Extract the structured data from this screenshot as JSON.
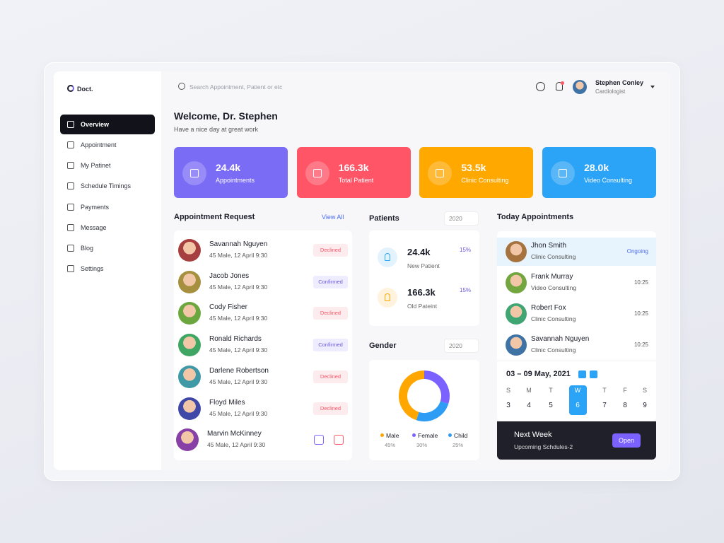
{
  "brand": "Doct.",
  "nav": [
    "Overview",
    "Appointment",
    "My Patinet",
    "Schedule Timings",
    "Payments",
    "Message",
    "Blog",
    "Settings"
  ],
  "search_placeholder": "Search Appointment, Patient or etc",
  "user": {
    "name": "Stephen Conley",
    "role": "Cardiologist"
  },
  "welcome": {
    "title": "Welcome, Dr. Stephen",
    "subtitle": "Have a nice day at great work"
  },
  "stats": [
    {
      "value": "24.4k",
      "label": "Appointments",
      "color": "#7b6cf6"
    },
    {
      "value": "166.3k",
      "label": "Total Patient",
      "color": "#ff5567"
    },
    {
      "value": "53.5k",
      "label": "Clinic Consulting",
      "color": "#ffa800"
    },
    {
      "value": "28.0k",
      "label": "Video Consulting",
      "color": "#2ba3f6"
    }
  ],
  "appointment_request": {
    "title": "Appointment Request",
    "link": "View All",
    "rows": [
      {
        "name": "Savannah Nguyen",
        "info": "45 Male, 12 April 9:30",
        "status": "Declined"
      },
      {
        "name": "Jacob Jones",
        "info": "45 Male, 12 April 9:30",
        "status": "Confirmed"
      },
      {
        "name": "Cody Fisher",
        "info": "45 Male, 12 April 9:30",
        "status": "Declined"
      },
      {
        "name": "Ronald Richards",
        "info": "45 Male, 12 April 9:30",
        "status": "Confirmed"
      },
      {
        "name": "Darlene Robertson",
        "info": "45 Male, 12 April 9:30",
        "status": "Declined"
      },
      {
        "name": "Floyd Miles",
        "info": "45 Male, 12 April 9:30",
        "status": "Declined"
      },
      {
        "name": "Marvin McKinney",
        "info": "45 Male, 12 April 9:30"
      }
    ]
  },
  "patients": {
    "title": "Patients",
    "year": "2020",
    "items": [
      {
        "value": "24.4k",
        "change": "15%",
        "label": "New Patient",
        "color": "#2ba3f6"
      },
      {
        "value": "166.3k",
        "change": "15%",
        "label": "Old Pateint",
        "color": "#ffa800"
      }
    ]
  },
  "gender": {
    "title": "Gender",
    "year": "2020",
    "items": [
      {
        "name": "Male",
        "value": 45,
        "label": "45%",
        "color": "#ffa600"
      },
      {
        "name": "Female",
        "value": 30,
        "label": "30%",
        "color": "#7b61ff"
      },
      {
        "name": "Child",
        "value": 25,
        "label": "25%",
        "color": "#2d9cf5"
      }
    ]
  },
  "today": {
    "title": "Today Appointments",
    "rows": [
      {
        "name": "Jhon Smith",
        "type": "Clinic Consulting",
        "time": "Ongoing"
      },
      {
        "name": "Frank Murray",
        "type": "Video Consulting",
        "time": "10:25"
      },
      {
        "name": "Robert Fox",
        "type": "Clinic Consulting",
        "time": "10:25"
      },
      {
        "name": "Savannah Nguyen",
        "type": "Clinic Consulting",
        "time": "10:25"
      }
    ]
  },
  "calendar": {
    "range": "03 – 09 May, 2021",
    "days": [
      {
        "day": "S",
        "date": 3
      },
      {
        "day": "M",
        "date": 4
      },
      {
        "day": "T",
        "date": 5
      },
      {
        "day": "W",
        "date": 6
      },
      {
        "day": "T",
        "date": 7
      },
      {
        "day": "F",
        "date": 8
      },
      {
        "day": "S",
        "date": 9
      }
    ]
  },
  "next_week": {
    "title": "Next Week",
    "subtitle": "Upcoming Schdules-2",
    "button": "Open"
  }
}
